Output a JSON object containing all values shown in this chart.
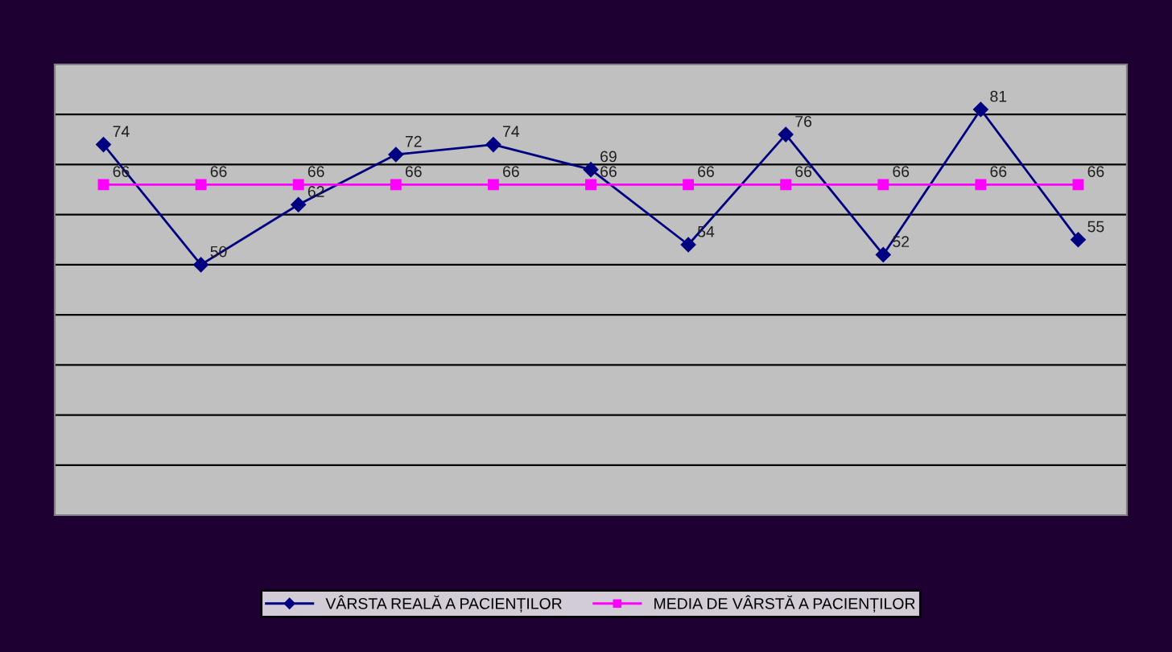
{
  "chart_data": {
    "type": "line",
    "categories": [
      null,
      null,
      null,
      null,
      null,
      null,
      null,
      null,
      null,
      null,
      null
    ],
    "series": [
      {
        "name": "VÂRSTA REALĂ A PACIENȚILOR",
        "color": "#000080",
        "marker": "diamond",
        "values": [
          74,
          50,
          62,
          72,
          74,
          69,
          54,
          76,
          52,
          81,
          55
        ]
      },
      {
        "name": "MEDIA DE VÂRSTĂ A PACIENȚILOR",
        "color": "#ff00ff",
        "marker": "square",
        "values": [
          66,
          66,
          66,
          66,
          66,
          66,
          66,
          66,
          66,
          66,
          66
        ]
      }
    ],
    "ylim": [
      0,
      90
    ],
    "yticks": [
      {
        "value": 0,
        "label": null
      },
      {
        "value": 10,
        "label": null
      },
      {
        "value": 20,
        "label": null
      },
      {
        "value": 30,
        "label": null
      },
      {
        "value": 40,
        "label": null
      },
      {
        "value": 50,
        "label": null
      },
      {
        "value": 60,
        "label": null
      },
      {
        "value": 70,
        "label": null
      },
      {
        "value": 80,
        "label": null
      },
      {
        "value": 90,
        "label": null
      }
    ],
    "grid": "y",
    "data_labels": true,
    "legend": "bottom"
  }
}
